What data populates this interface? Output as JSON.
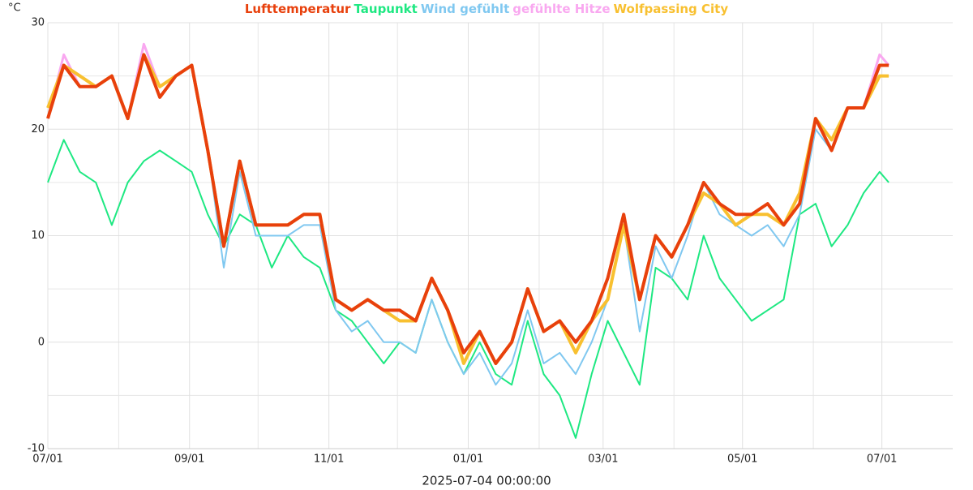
{
  "chart_data": {
    "type": "line",
    "y_label": "°C",
    "footer": "2025-07-04 00:00:00",
    "x": [
      0,
      7,
      14,
      21,
      28,
      35,
      42,
      49,
      56,
      63,
      70,
      77,
      84,
      91,
      98,
      105,
      112,
      119,
      126,
      133,
      140,
      147,
      154,
      161,
      168,
      175,
      182,
      189,
      196,
      203,
      210,
      217,
      224,
      231,
      238,
      245,
      252,
      259,
      266,
      273,
      280,
      287,
      294,
      301,
      308,
      315,
      322,
      329,
      336,
      343,
      350,
      357,
      364,
      368
    ],
    "xlim": [
      0,
      396
    ],
    "xticks": [
      {
        "value": 0,
        "label": "07/01"
      },
      {
        "value": 62,
        "label": "09/01"
      },
      {
        "value": 123,
        "label": "11/01"
      },
      {
        "value": 184,
        "label": "01/01"
      },
      {
        "value": 243,
        "label": "03/01"
      },
      {
        "value": 304,
        "label": "05/01"
      },
      {
        "value": 365,
        "label": "07/01"
      }
    ],
    "xminor": [
      31,
      92,
      153,
      215,
      274,
      335
    ],
    "ylim": [
      -10,
      30
    ],
    "yticks": [
      -10,
      0,
      10,
      20,
      30
    ],
    "yminor": [
      -5,
      5,
      15,
      25
    ],
    "grid": true,
    "series": [
      {
        "name": "Taupunkt",
        "color": "#1ee882",
        "width": 2,
        "values": [
          15,
          19,
          16,
          15,
          11,
          15,
          17,
          18,
          17,
          16,
          12,
          9,
          12,
          11,
          7,
          10,
          8,
          7,
          3,
          2,
          0,
          -2,
          0,
          -1,
          4,
          0,
          -3,
          0,
          -3,
          -4,
          2,
          -3,
          -5,
          -9,
          -3,
          2,
          -1,
          -4,
          7,
          6,
          4,
          10,
          6,
          4,
          2,
          3,
          4,
          12,
          13,
          9,
          11,
          14,
          16,
          15
        ]
      },
      {
        "name": "Wind gefühlt",
        "color": "#80c8f0",
        "width": 2,
        "values": [
          21,
          26,
          24,
          24,
          25,
          21,
          27,
          23,
          25,
          26,
          18,
          7,
          16,
          10,
          10,
          10,
          11,
          11,
          3,
          1,
          2,
          0,
          0,
          -1,
          4,
          0,
          -3,
          -1,
          -4,
          -2,
          3,
          -2,
          -1,
          -3,
          0,
          4,
          11,
          1,
          9,
          6,
          10,
          15,
          12,
          11,
          10,
          11,
          9,
          12,
          20,
          18,
          22,
          22,
          26,
          26
        ]
      },
      {
        "name": "gefühlte Hitze",
        "color": "#f9a8f0",
        "width": 3,
        "values": [
          21,
          27,
          24,
          24,
          25,
          21,
          28,
          24,
          25,
          26,
          18,
          9,
          17,
          11,
          11,
          11,
          12,
          12,
          4,
          3,
          4,
          3,
          3,
          2,
          6,
          3,
          -1,
          1,
          -2,
          0,
          5,
          1,
          2,
          0,
          2,
          6,
          12,
          4,
          10,
          8,
          11,
          15,
          13,
          12,
          12,
          13,
          11,
          13,
          21,
          18,
          22,
          22,
          27,
          26
        ]
      },
      {
        "name": "Wolfpassing City",
        "color": "#f8c030",
        "width": 4,
        "values": [
          22,
          26,
          25,
          24,
          25,
          21,
          27,
          24,
          25,
          26,
          18,
          9,
          17,
          11,
          11,
          11,
          12,
          12,
          4,
          3,
          4,
          3,
          2,
          2,
          6,
          3,
          -2,
          1,
          -2,
          0,
          5,
          1,
          2,
          -1,
          2,
          4,
          11,
          4,
          10,
          8,
          11,
          14,
          13,
          11,
          12,
          12,
          11,
          14,
          21,
          19,
          22,
          22,
          25,
          25
        ]
      },
      {
        "name": "Lufttemperatur",
        "color": "#e8400c",
        "width": 4,
        "values": [
          21,
          26,
          24,
          24,
          25,
          21,
          27,
          23,
          25,
          26,
          18,
          9,
          17,
          11,
          11,
          11,
          12,
          12,
          4,
          3,
          4,
          3,
          3,
          2,
          6,
          3,
          -1,
          1,
          -2,
          0,
          5,
          1,
          2,
          0,
          2,
          6,
          12,
          4,
          10,
          8,
          11,
          15,
          13,
          12,
          12,
          13,
          11,
          13,
          21,
          18,
          22,
          22,
          26,
          26
        ]
      }
    ],
    "legend_order": [
      4,
      0,
      1,
      2,
      3
    ]
  }
}
